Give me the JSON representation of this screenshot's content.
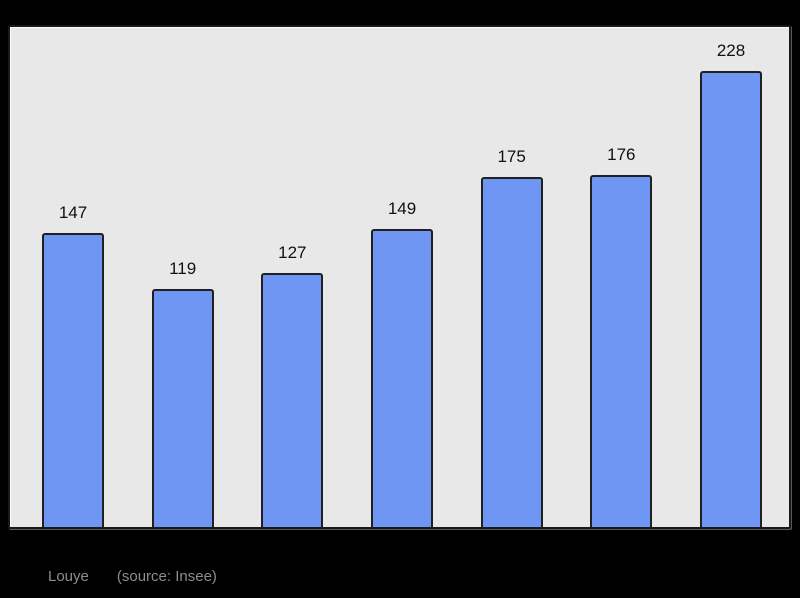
{
  "chart_data": {
    "type": "bar",
    "values": [
      147,
      119,
      127,
      149,
      175,
      176,
      228
    ],
    "data_labels": [
      "147",
      "119",
      "127",
      "149",
      "175",
      "176",
      "228"
    ],
    "title": "",
    "xlabel": "",
    "ylabel": "",
    "ylim": [
      0,
      250
    ],
    "grid": false,
    "legend": false,
    "bar_color": "#6e96f2",
    "bar_border_color": "#202020",
    "plot_background": "#e8e8e8",
    "page_background": "#000000",
    "label_color": "#111111"
  },
  "caption": {
    "title": "Louye",
    "source": "(source: Insee)",
    "color": "#8d8d8d"
  }
}
